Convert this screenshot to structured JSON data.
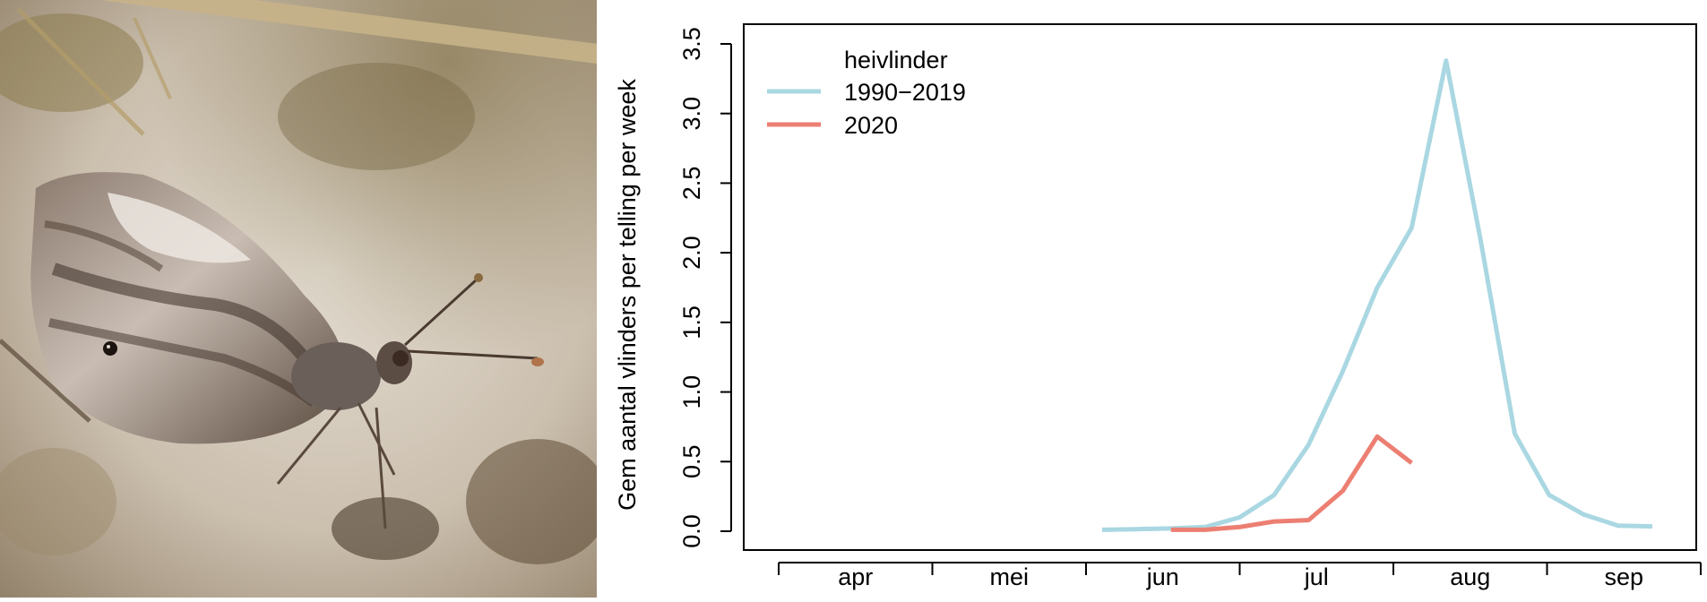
{
  "photo": {
    "subject": "grayling-butterfly-on-sand"
  },
  "chart_data": {
    "type": "line",
    "title": "",
    "xlabel": "",
    "ylabel": "Gem aantal vlinders per telling per week",
    "ylim": [
      0,
      3.5
    ],
    "y_ticks": [
      "0.0",
      "0.5",
      "1.0",
      "1.5",
      "2.0",
      "2.5",
      "3.0",
      "3.5"
    ],
    "x_ticks": [
      "apr",
      "mei",
      "jun",
      "jul",
      "aug",
      "sep"
    ],
    "grid": false,
    "legend_title": "heivlinder",
    "legend_position": "top-left",
    "series": [
      {
        "name": "1990−2019",
        "color": "#a9d7e2",
        "points": [
          {
            "week": 22,
            "value": 0.01
          },
          {
            "week": 23,
            "value": 0.015
          },
          {
            "week": 24,
            "value": 0.02
          },
          {
            "week": 25,
            "value": 0.03
          },
          {
            "week": 26,
            "value": 0.1
          },
          {
            "week": 27,
            "value": 0.26
          },
          {
            "week": 28,
            "value": 0.62
          },
          {
            "week": 29,
            "value": 1.15
          },
          {
            "week": 30,
            "value": 1.75
          },
          {
            "week": 31,
            "value": 2.18
          },
          {
            "week": 32,
            "value": 3.38
          },
          {
            "week": 33,
            "value": 2.1
          },
          {
            "week": 34,
            "value": 0.7
          },
          {
            "week": 35,
            "value": 0.26
          },
          {
            "week": 36,
            "value": 0.12
          },
          {
            "week": 37,
            "value": 0.04
          },
          {
            "week": 38,
            "value": 0.035
          }
        ]
      },
      {
        "name": "2020",
        "color": "#ec7f72",
        "points": [
          {
            "week": 24,
            "value": 0.01
          },
          {
            "week": 25,
            "value": 0.01
          },
          {
            "week": 26,
            "value": 0.03
          },
          {
            "week": 27,
            "value": 0.07
          },
          {
            "week": 28,
            "value": 0.08
          },
          {
            "week": 29,
            "value": 0.29
          },
          {
            "week": 30,
            "value": 0.68
          },
          {
            "week": 31,
            "value": 0.49
          }
        ]
      }
    ]
  }
}
